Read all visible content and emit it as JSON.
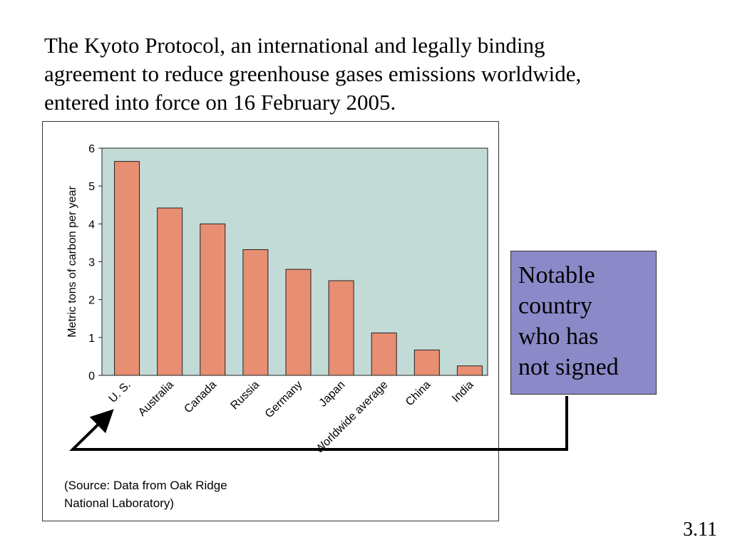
{
  "slide": {
    "heading_lines": [
      "The Kyoto Protocol, an international and legally binding",
      "agreement to reduce greenhouse gases emissions worldwide,",
      "entered into force on 16 February 2005."
    ],
    "callout_lines": [
      "Notable",
      "country",
      "who has",
      "not signed"
    ],
    "slide_number": "3.11"
  },
  "source_lines": [
    "(Source: Data from Oak Ridge",
    "National Laboratory)"
  ],
  "colors": {
    "plot_background": "#c3dbd7",
    "bar_fill": "#e88e72",
    "callout_fill": "#8b89c8"
  },
  "chart_data": {
    "type": "bar",
    "ylabel": "Metric tons of carbon per year",
    "xlabel": "",
    "ylim": [
      0,
      6
    ],
    "yticks": [
      "0",
      "1",
      "2",
      "3",
      "4",
      "5",
      "6"
    ],
    "categories": [
      "U. S.",
      "Australia",
      "Canada",
      "Russia",
      "Germany",
      "Japan",
      "Worldwide average",
      "China",
      "India"
    ],
    "values": [
      5.65,
      4.42,
      4.0,
      3.32,
      2.8,
      2.5,
      1.12,
      0.67,
      0.25
    ],
    "grid": false,
    "legend": "none"
  }
}
